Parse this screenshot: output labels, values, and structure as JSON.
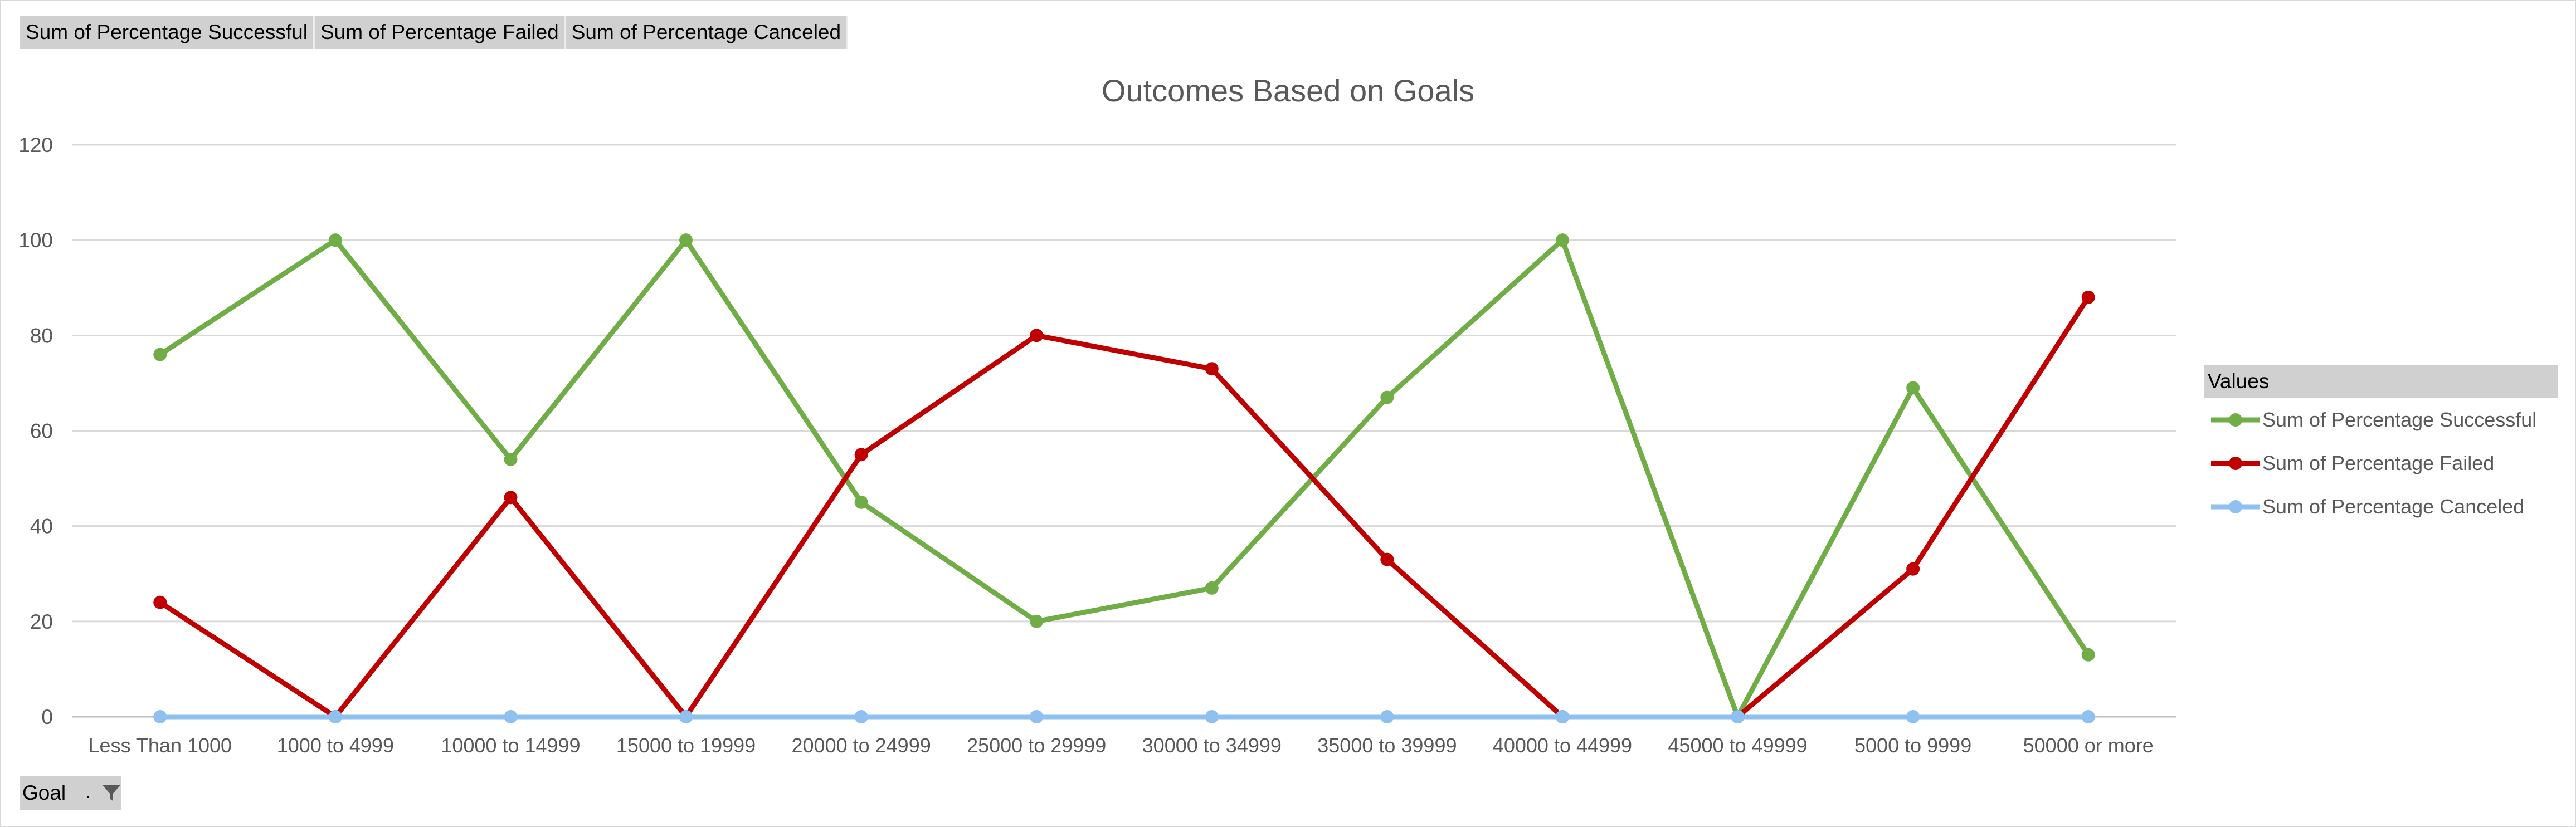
{
  "field_buttons": [
    "Sum of Percentage  Successful",
    "Sum of Percentage  Failed",
    "Sum of Percentage  Canceled"
  ],
  "axis_field_button": {
    "label": "Goal",
    "icon": "filter-funnel-icon"
  },
  "legend": {
    "title": "Values"
  },
  "chart_data": {
    "type": "line",
    "title": "Outcomes Based on Goals",
    "xlabel": "",
    "ylabel": "",
    "ylim": [
      0,
      120
    ],
    "yticks": [
      0,
      20,
      40,
      60,
      80,
      100,
      120
    ],
    "grid": true,
    "legend_position": "right",
    "categories": [
      "Less Than 1000",
      "1000 to 4999",
      "10000 to 14999",
      "15000 to 19999",
      "20000 to 24999",
      "25000 to 29999",
      "30000 to 34999",
      "35000 to 39999",
      "40000 to 44999",
      "45000 to 49999",
      "5000 to 9999",
      "50000 or more"
    ],
    "series": [
      {
        "name": "Sum of Percentage Successful",
        "color": "#70ad47",
        "values": [
          76,
          100,
          54,
          100,
          45,
          20,
          27,
          67,
          100,
          0,
          69,
          13
        ]
      },
      {
        "name": "Sum of Percentage Failed",
        "color": "#c00000",
        "values": [
          24,
          0,
          46,
          0,
          55,
          80,
          73,
          33,
          0,
          0,
          31,
          88
        ]
      },
      {
        "name": "Sum of Percentage Canceled",
        "color": "#8ec1f0",
        "values": [
          0,
          0,
          0,
          0,
          0,
          0,
          0,
          0,
          0,
          0,
          0,
          0
        ]
      }
    ]
  }
}
